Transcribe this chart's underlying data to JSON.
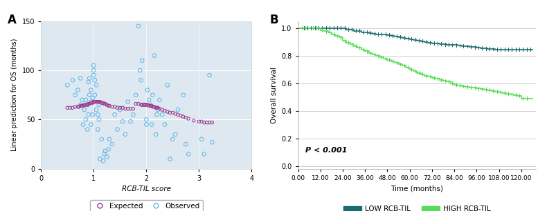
{
  "panel_A": {
    "label": "A",
    "plot_bg": "#dde8f0",
    "fig_bg": "#ffffff",
    "xlim": [
      0.0,
      4.0
    ],
    "ylim": [
      0,
      150
    ],
    "xticks": [
      0.0,
      1.0,
      2.0,
      3.0,
      4.0
    ],
    "yticks": [
      0,
      50,
      100,
      150
    ],
    "xlabel": "RCB-TIL score",
    "ylabel": "Linear prediction for OS (months)",
    "observed_color": "#5ab4e8",
    "expected_color": "#9b2f8a",
    "observed_x": [
      0.5,
      0.6,
      0.65,
      0.7,
      0.75,
      0.75,
      0.78,
      0.8,
      0.82,
      0.85,
      0.85,
      0.88,
      0.88,
      0.9,
      0.9,
      0.92,
      0.92,
      0.95,
      0.95,
      0.95,
      0.98,
      0.98,
      1.0,
      1.0,
      1.0,
      1.02,
      1.02,
      1.05,
      1.05,
      1.08,
      1.08,
      1.1,
      1.1,
      1.12,
      1.15,
      1.18,
      1.2,
      1.22,
      1.25,
      1.28,
      1.3,
      1.35,
      1.4,
      1.45,
      1.5,
      1.55,
      1.6,
      1.65,
      1.7,
      1.75,
      1.8,
      1.85,
      1.88,
      1.9,
      1.92,
      1.95,
      2.0,
      2.0,
      2.02,
      2.05,
      2.08,
      2.1,
      2.12,
      2.15,
      2.18,
      2.2,
      2.22,
      2.25,
      2.3,
      2.35,
      2.4,
      2.45,
      2.5,
      2.55,
      2.6,
      2.7,
      2.75,
      2.8,
      3.05,
      3.1,
      3.2,
      3.25
    ],
    "observed_y": [
      85,
      90,
      75,
      80,
      65,
      92,
      70,
      45,
      60,
      70,
      50,
      40,
      65,
      55,
      88,
      75,
      92,
      68,
      80,
      45,
      72,
      55,
      100,
      95,
      105,
      90,
      75,
      85,
      60,
      55,
      40,
      65,
      50,
      10,
      30,
      8,
      15,
      18,
      12,
      20,
      30,
      25,
      55,
      40,
      60,
      48,
      35,
      68,
      48,
      55,
      75,
      145,
      100,
      90,
      110,
      65,
      50,
      45,
      80,
      70,
      65,
      45,
      75,
      115,
      35,
      55,
      60,
      70,
      55,
      45,
      85,
      10,
      30,
      35,
      60,
      75,
      25,
      15,
      30,
      15,
      95,
      27
    ],
    "expected_x_seg1": [
      0.5,
      0.55,
      0.6,
      0.65,
      0.7,
      0.72,
      0.75,
      0.78,
      0.8,
      0.82,
      0.85,
      0.88,
      0.9,
      0.92,
      0.95,
      0.98,
      1.0,
      1.02,
      1.05,
      1.08,
      1.1,
      1.12,
      1.15,
      1.18,
      1.2,
      1.22,
      1.25,
      1.28,
      1.3,
      1.35,
      1.4,
      1.45,
      1.5,
      1.55,
      1.6,
      1.65,
      1.7,
      1.75
    ],
    "expected_y_seg1": [
      62,
      62,
      62,
      63,
      63,
      63,
      64,
      64,
      64,
      65,
      65,
      65,
      66,
      66,
      67,
      67,
      68,
      68,
      68,
      68,
      68,
      68,
      67,
      67,
      66,
      66,
      65,
      64,
      64,
      63,
      63,
      62,
      62,
      62,
      61,
      61,
      61,
      61
    ],
    "expected_x_seg2": [
      1.8,
      1.85,
      1.9,
      1.92,
      1.95,
      1.98,
      2.0,
      2.02,
      2.05,
      2.08,
      2.1,
      2.12,
      2.15,
      2.18,
      2.2,
      2.22,
      2.25,
      2.3,
      2.35,
      2.4,
      2.45,
      2.5,
      2.55,
      2.6,
      2.65,
      2.7,
      2.75,
      2.8,
      2.9,
      3.0,
      3.05,
      3.1,
      3.15,
      3.2,
      3.25
    ],
    "expected_y_seg2": [
      66,
      66,
      65,
      65,
      65,
      65,
      65,
      65,
      64,
      64,
      64,
      63,
      63,
      62,
      62,
      62,
      61,
      60,
      59,
      58,
      57,
      57,
      56,
      55,
      54,
      53,
      52,
      51,
      49,
      48,
      48,
      47,
      47,
      47,
      47
    ],
    "legend_expected": "Expected",
    "legend_observed": "Observed"
  },
  "panel_B": {
    "label": "B",
    "fig_bg": "#ffffff",
    "xlim": [
      0,
      128
    ],
    "ylim": [
      -0.02,
      1.05
    ],
    "xticks": [
      0,
      12,
      24,
      36,
      48,
      60,
      72,
      84,
      96,
      108,
      120
    ],
    "yticks": [
      0.0,
      0.2,
      0.4,
      0.6,
      0.8,
      1.0
    ],
    "xlabel": "Time (months)",
    "ylabel": "Overall survival",
    "low_color": "#1a6b6b",
    "high_color": "#55dd55",
    "pvalue_text": "P < 0.001",
    "legend_low": "LOW RCB-TIL",
    "legend_high": "HIGH RCB-TIL",
    "low_times": [
      0,
      6,
      12,
      18,
      24,
      26,
      28,
      30,
      32,
      34,
      36,
      38,
      40,
      42,
      44,
      46,
      48,
      50,
      52,
      54,
      56,
      58,
      60,
      62,
      64,
      66,
      68,
      70,
      72,
      74,
      76,
      78,
      80,
      82,
      84,
      86,
      88,
      90,
      92,
      94,
      96,
      98,
      100,
      102,
      104,
      106,
      108,
      110,
      112,
      114,
      116,
      118,
      120,
      122,
      124,
      126
    ],
    "low_surv": [
      1.0,
      1.0,
      1.0,
      1.0,
      1.0,
      0.99,
      0.99,
      0.98,
      0.98,
      0.97,
      0.97,
      0.965,
      0.96,
      0.955,
      0.955,
      0.955,
      0.95,
      0.945,
      0.94,
      0.935,
      0.93,
      0.925,
      0.92,
      0.915,
      0.91,
      0.905,
      0.9,
      0.895,
      0.89,
      0.887,
      0.885,
      0.882,
      0.88,
      0.878,
      0.876,
      0.873,
      0.87,
      0.868,
      0.865,
      0.862,
      0.858,
      0.855,
      0.852,
      0.85,
      0.848,
      0.845,
      0.845,
      0.845,
      0.845,
      0.845,
      0.845,
      0.845,
      0.845,
      0.845,
      0.845,
      0.845
    ],
    "low_censor_times": [
      3,
      5,
      7,
      9,
      11,
      13,
      15,
      17,
      19,
      21,
      23,
      25,
      27,
      29,
      31,
      33,
      35,
      37,
      39,
      41,
      43,
      45,
      47,
      49,
      51,
      53,
      55,
      57,
      59,
      61,
      63,
      65,
      67,
      69,
      71,
      73,
      75,
      77,
      79,
      81,
      83,
      85,
      87,
      89,
      91,
      93,
      95,
      97,
      99,
      101,
      103,
      105,
      107,
      109,
      111,
      113,
      115,
      117,
      119,
      121,
      123,
      125
    ],
    "high_times": [
      0,
      6,
      12,
      14,
      16,
      18,
      20,
      22,
      24,
      26,
      28,
      30,
      32,
      34,
      36,
      38,
      40,
      42,
      44,
      46,
      48,
      50,
      52,
      54,
      56,
      58,
      60,
      62,
      64,
      66,
      68,
      70,
      72,
      74,
      76,
      78,
      80,
      82,
      84,
      86,
      88,
      90,
      92,
      94,
      96,
      98,
      100,
      102,
      104,
      106,
      108,
      110,
      112,
      114,
      116,
      118,
      120,
      122,
      124,
      126
    ],
    "high_surv": [
      1.0,
      1.0,
      0.985,
      0.977,
      0.969,
      0.955,
      0.943,
      0.931,
      0.91,
      0.895,
      0.882,
      0.87,
      0.858,
      0.845,
      0.832,
      0.818,
      0.808,
      0.798,
      0.788,
      0.778,
      0.77,
      0.76,
      0.748,
      0.738,
      0.728,
      0.715,
      0.7,
      0.688,
      0.675,
      0.665,
      0.655,
      0.648,
      0.64,
      0.632,
      0.625,
      0.618,
      0.612,
      0.6,
      0.59,
      0.585,
      0.578,
      0.575,
      0.57,
      0.567,
      0.562,
      0.558,
      0.555,
      0.55,
      0.545,
      0.54,
      0.535,
      0.53,
      0.525,
      0.52,
      0.515,
      0.51,
      0.49,
      0.49,
      0.49,
      0.49
    ],
    "high_censor_times": [
      2,
      4,
      8,
      10,
      13,
      15,
      17,
      19,
      21,
      23,
      25,
      27,
      29,
      31,
      33,
      35,
      37,
      39,
      41,
      43,
      45,
      47,
      49,
      51,
      53,
      55,
      57,
      59,
      61,
      63,
      65,
      67,
      69,
      71,
      73,
      75,
      77,
      79,
      81,
      83,
      85,
      87,
      89,
      91,
      93,
      95,
      97,
      99,
      101,
      103,
      105,
      107,
      109,
      111,
      113,
      115,
      117,
      119,
      121,
      123
    ]
  }
}
